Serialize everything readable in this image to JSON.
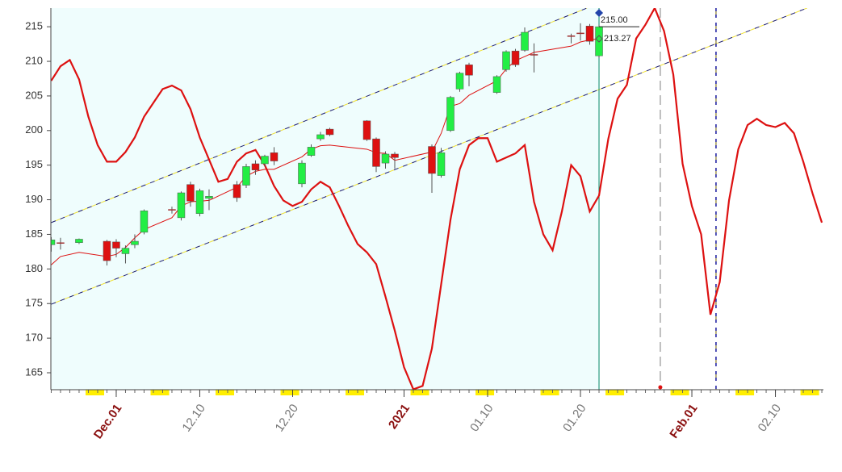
{
  "chart_data": {
    "type": "candlestick",
    "x": [
      0,
      1,
      3,
      6,
      7,
      8,
      9,
      10,
      13,
      14,
      15,
      16,
      17,
      20,
      21,
      22,
      23,
      24,
      27,
      28,
      29,
      30,
      34,
      35,
      36,
      37,
      41,
      42,
      43,
      44,
      45,
      48,
      49,
      50,
      51,
      52,
      56,
      57,
      58,
      59
    ],
    "open": [
      183.5,
      183.8,
      183.8,
      184.0,
      183.9,
      182.2,
      183.5,
      185.3,
      188.6,
      187.4,
      192.2,
      188.0,
      190.2,
      192.2,
      192.1,
      195.2,
      195.2,
      196.8,
      192.3,
      196.4,
      198.8,
      200.2,
      201.4,
      198.8,
      195.3,
      196.6,
      197.7,
      193.5,
      200.0,
      206.0,
      209.5,
      205.5,
      208.8,
      211.5,
      211.6,
      211.0,
      213.7,
      214.1,
      215.1,
      210.8
    ],
    "close": [
      184.2,
      183.8,
      184.3,
      181.2,
      183.0,
      183.0,
      184.0,
      188.4,
      188.6,
      191.0,
      189.8,
      191.3,
      190.5,
      190.3,
      194.8,
      194.3,
      196.3,
      195.6,
      195.3,
      197.6,
      199.4,
      199.4,
      198.7,
      194.8,
      196.6,
      196.1,
      193.8,
      196.8,
      204.8,
      208.3,
      208.0,
      207.8,
      211.4,
      209.5,
      214.2,
      211.0,
      213.7,
      214.1,
      212.9,
      215.0
    ],
    "high": [
      184.6,
      184.5,
      184.4,
      184.2,
      184.3,
      183.4,
      185.0,
      188.6,
      189.0,
      191.2,
      192.6,
      191.6,
      191.5,
      192.7,
      195.2,
      195.7,
      196.5,
      197.6,
      195.7,
      198.0,
      199.8,
      200.4,
      201.5,
      199.0,
      197.0,
      196.9,
      198.0,
      197.5,
      205.0,
      208.5,
      209.8,
      208.0,
      211.6,
      211.8,
      214.9,
      212.6,
      214.0,
      215.5,
      215.4,
      215.3
    ],
    "low": [
      182.5,
      182.8,
      183.6,
      180.5,
      181.7,
      180.8,
      183.0,
      185.0,
      188.0,
      187.0,
      189.0,
      187.6,
      188.5,
      189.7,
      191.7,
      193.6,
      194.8,
      195.0,
      191.8,
      196.2,
      198.5,
      199.2,
      198.5,
      194.0,
      194.5,
      194.5,
      191.0,
      193.2,
      199.8,
      205.6,
      206.4,
      205.3,
      208.5,
      209.2,
      211.4,
      208.4,
      212.6,
      213.0,
      212.4,
      210.5
    ],
    "up_color": "#22ee44",
    "down_color": "#dd1111",
    "moving_average": {
      "color": "#dd1111",
      "values": [
        180.6,
        181.8,
        182.4,
        181.8,
        182.1,
        183.1,
        184.5,
        185.7,
        187.4,
        189.1,
        189.7,
        189.8,
        189.9,
        191.8,
        193.4,
        194.1,
        194.4,
        194.4,
        196.2,
        197.3,
        197.8,
        197.9,
        197.3,
        196.8,
        196.7,
        195.7,
        196.9,
        199.6,
        203.5,
        203.9,
        205.1,
        207.2,
        208.9,
        210.1,
        210.7,
        211.3,
        212.2,
        212.8,
        213.1,
        213.27
      ]
    },
    "oscillator": {
      "color": "#dd1111",
      "x": [
        0,
        1,
        2,
        3,
        4,
        5,
        6,
        7,
        8,
        9,
        10,
        11,
        12,
        13,
        14,
        15,
        16,
        17,
        18,
        19,
        20,
        21,
        22,
        23,
        24,
        25,
        26,
        27,
        28,
        29,
        30,
        31,
        32,
        33,
        34,
        35,
        36,
        37,
        38,
        39,
        40,
        41,
        42,
        43,
        44,
        45,
        46,
        47,
        48,
        49,
        50,
        51,
        52,
        53,
        54,
        55,
        56,
        57,
        58,
        59,
        60,
        61,
        62,
        63,
        64,
        65,
        66,
        67,
        68,
        69,
        70,
        71,
        72,
        73,
        74,
        75,
        76,
        77,
        78,
        79,
        80,
        81,
        82,
        83
      ],
      "values": [
        207.2,
        209.3,
        210.2,
        207.4,
        202.0,
        197.9,
        195.5,
        195.5,
        196.9,
        199.0,
        202.0,
        204.0,
        206.0,
        206.5,
        205.8,
        203.1,
        199.0,
        195.8,
        192.6,
        193.0,
        195.5,
        196.7,
        197.2,
        195.0,
        192.0,
        189.9,
        189.1,
        189.7,
        191.5,
        192.6,
        191.8,
        189.1,
        186.2,
        183.6,
        182.4,
        180.7,
        176.0,
        171.1,
        165.8,
        162.6,
        163.1,
        168.5,
        177.8,
        187.1,
        194.4,
        197.9,
        198.9,
        198.9,
        195.5,
        196.1,
        196.7,
        197.9,
        189.7,
        185.0,
        182.7,
        188.3,
        195.0,
        193.4,
        188.3,
        190.6,
        198.8,
        204.6,
        206.6,
        213.3,
        215.3,
        217.7,
        214.4,
        208.1,
        195.2,
        189.1,
        185.0,
        173.4,
        178.1,
        189.9,
        197.3,
        200.8,
        201.7,
        200.8,
        200.5,
        201.1,
        199.6,
        195.5,
        190.9,
        186.7
      ]
    },
    "channels": [
      {
        "x": [
          0,
          57.7
        ],
        "values": [
          186.7,
          217.7
        ]
      },
      {
        "x": [
          0,
          81.4
        ],
        "values": [
          174.9,
          217.7
        ]
      }
    ],
    "vlines": [
      {
        "x": 59,
        "color": "#008866",
        "dashed": false
      },
      {
        "x": 65.6,
        "color": "#aaaaaa",
        "dashed": true
      },
      {
        "x": 71.6,
        "color": "#1a1aa0",
        "dashed": true
      }
    ],
    "marker": {
      "x": 59,
      "value": 217.0,
      "color": "#2244aa"
    },
    "end_dot": {
      "x": 65.6,
      "value": 162.9,
      "color": "#dd1111"
    },
    "price_labels": [
      {
        "value": 215.0,
        "label": "215.00"
      },
      {
        "value": 213.27,
        "label": "213.27"
      }
    ],
    "xlim": [
      -0.04,
      83.17
    ],
    "ylim": [
      162.55,
      217.7
    ],
    "yticks": [
      165,
      170,
      175,
      180,
      185,
      190,
      195,
      200,
      205,
      210,
      215
    ],
    "xticks": [
      {
        "value": 7,
        "label": "Dec.01",
        "emphasis": true
      },
      {
        "value": 16,
        "label": "12.10",
        "emphasis": false
      },
      {
        "value": 26,
        "label": "12.20",
        "emphasis": false
      },
      {
        "value": 38,
        "label": "2021",
        "emphasis": true
      },
      {
        "value": 47,
        "label": "01.10",
        "emphasis": false
      },
      {
        "value": 57,
        "label": "01.20",
        "emphasis": false
      },
      {
        "value": 69,
        "label": "Feb.01",
        "emphasis": true
      },
      {
        "value": 78,
        "label": "02.10",
        "emphasis": false
      }
    ]
  }
}
